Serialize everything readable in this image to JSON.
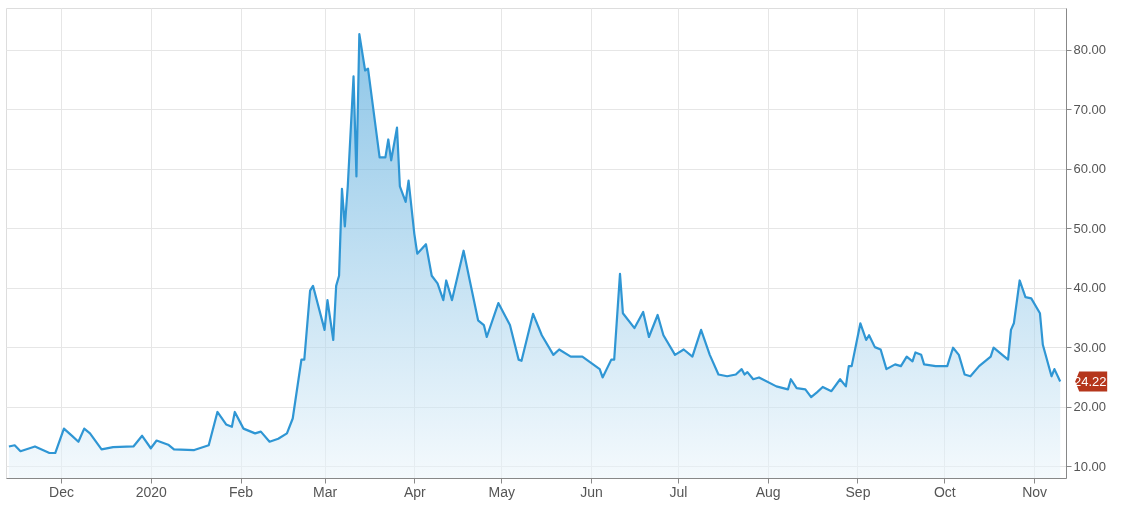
{
  "chart_data": {
    "type": "area",
    "grid": true,
    "xlim": [
      "2019-11-12",
      "2020-11-12"
    ],
    "ylim": [
      8,
      87
    ],
    "xticks": [
      {
        "value": "2019-12-01",
        "label": "Dec"
      },
      {
        "value": "2020-01-01",
        "label": "2020"
      },
      {
        "value": "2020-02-01",
        "label": "Feb"
      },
      {
        "value": "2020-03-01",
        "label": "Mar"
      },
      {
        "value": "2020-04-01",
        "label": "Apr"
      },
      {
        "value": "2020-05-01",
        "label": "May"
      },
      {
        "value": "2020-06-01",
        "label": "Jun"
      },
      {
        "value": "2020-07-01",
        "label": "Jul"
      },
      {
        "value": "2020-08-01",
        "label": "Aug"
      },
      {
        "value": "2020-09-01",
        "label": "Sep"
      },
      {
        "value": "2020-10-01",
        "label": "Oct"
      },
      {
        "value": "2020-11-01",
        "label": "Nov"
      }
    ],
    "yticks": [
      {
        "value": 10,
        "label": "10.00"
      },
      {
        "value": 20,
        "label": "20.00"
      },
      {
        "value": 30,
        "label": "30.00"
      },
      {
        "value": 40,
        "label": "40.00"
      },
      {
        "value": 50,
        "label": "50.00"
      },
      {
        "value": 60,
        "label": "60.00"
      },
      {
        "value": 70,
        "label": "70.00"
      },
      {
        "value": 80,
        "label": "80.00"
      }
    ],
    "annotations": [
      {
        "text": "24.22",
        "x": "2020-11-10",
        "y": 24.22
      }
    ],
    "x": [
      "2019-11-13",
      "2019-11-15",
      "2019-11-17",
      "2019-11-22",
      "2019-11-27",
      "2019-11-29",
      "2019-12-02",
      "2019-12-05",
      "2019-12-07",
      "2019-12-09",
      "2019-12-11",
      "2019-12-15",
      "2019-12-19",
      "2019-12-26",
      "2019-12-29",
      "2020-01-01",
      "2020-01-03",
      "2020-01-07",
      "2020-01-09",
      "2020-01-16",
      "2020-01-21",
      "2020-01-24",
      "2020-01-27",
      "2020-01-29",
      "2020-01-30",
      "2020-02-02",
      "2020-02-06",
      "2020-02-08",
      "2020-02-11",
      "2020-02-14",
      "2020-02-17",
      "2020-02-19",
      "2020-02-21",
      "2020-02-22",
      "2020-02-23",
      "2020-02-25",
      "2020-02-26",
      "2020-03-01",
      "2020-03-02",
      "2020-03-04",
      "2020-03-05",
      "2020-03-06",
      "2020-03-07",
      "2020-03-08",
      "2020-03-09",
      "2020-03-11",
      "2020-03-12",
      "2020-03-13",
      "2020-03-15",
      "2020-03-16",
      "2020-03-20",
      "2020-03-22",
      "2020-03-23",
      "2020-03-24",
      "2020-03-26",
      "2020-03-27",
      "2020-03-29",
      "2020-03-30",
      "2020-04-01",
      "2020-04-02",
      "2020-04-05",
      "2020-04-07",
      "2020-04-09",
      "2020-04-11",
      "2020-04-12",
      "2020-04-14",
      "2020-04-18",
      "2020-04-20",
      "2020-04-23",
      "2020-04-25",
      "2020-04-26",
      "2020-04-30",
      "2020-05-04",
      "2020-05-07",
      "2020-05-08",
      "2020-05-12",
      "2020-05-15",
      "2020-05-19",
      "2020-05-21",
      "2020-05-25",
      "2020-05-29",
      "2020-06-04",
      "2020-06-05",
      "2020-06-08",
      "2020-06-09",
      "2020-06-11",
      "2020-06-12",
      "2020-06-16",
      "2020-06-19",
      "2020-06-21",
      "2020-06-24",
      "2020-06-26",
      "2020-06-30",
      "2020-07-03",
      "2020-07-06",
      "2020-07-09",
      "2020-07-12",
      "2020-07-15",
      "2020-07-18",
      "2020-07-21",
      "2020-07-23",
      "2020-07-24",
      "2020-07-25",
      "2020-07-27",
      "2020-07-29",
      "2020-08-04",
      "2020-08-08",
      "2020-08-09",
      "2020-08-11",
      "2020-08-14",
      "2020-08-16",
      "2020-08-18",
      "2020-08-20",
      "2020-08-23",
      "2020-08-26",
      "2020-08-28",
      "2020-08-29",
      "2020-08-30",
      "2020-09-02",
      "2020-09-04",
      "2020-09-05",
      "2020-09-07",
      "2020-09-09",
      "2020-09-11",
      "2020-09-14",
      "2020-09-16",
      "2020-09-18",
      "2020-09-20",
      "2020-09-21",
      "2020-09-23",
      "2020-09-24",
      "2020-09-28",
      "2020-10-02",
      "2020-10-04",
      "2020-10-06",
      "2020-10-08",
      "2020-10-10",
      "2020-10-13",
      "2020-10-17",
      "2020-10-18",
      "2020-10-21",
      "2020-10-23",
      "2020-10-24",
      "2020-10-25",
      "2020-10-27",
      "2020-10-29",
      "2020-10-31",
      "2020-11-03",
      "2020-11-04",
      "2020-11-07",
      "2020-11-08",
      "2020-11-10"
    ],
    "series": [
      {
        "color": "#2f96d4",
        "values": [
          13.3,
          13.5,
          12.5,
          13.3,
          12.2,
          12.2,
          16.3,
          15.0,
          14.1,
          16.3,
          15.5,
          12.8,
          13.2,
          13.3,
          15.1,
          13.0,
          14.3,
          13.6,
          12.8,
          12.7,
          13.5,
          19.1,
          17.0,
          16.6,
          19.1,
          16.3,
          15.5,
          15.8,
          14.1,
          14.6,
          15.5,
          18.0,
          24.6,
          27.9,
          27.9,
          39.5,
          40.3,
          32.9,
          37.9,
          31.2,
          40.3,
          42.0,
          56.6,
          50.3,
          57.0,
          75.5,
          58.7,
          82.6,
          76.5,
          76.8,
          61.9,
          61.9,
          64.9,
          61.4,
          66.9,
          57.0,
          54.4,
          58.0,
          49.0,
          45.7,
          47.3,
          42.0,
          40.7,
          37.9,
          41.2,
          37.9,
          46.2,
          41.5,
          34.5,
          33.7,
          31.7,
          37.4,
          33.7,
          27.9,
          27.7,
          35.6,
          32.0,
          28.7,
          29.6,
          28.4,
          28.4,
          26.3,
          24.9,
          27.9,
          27.9,
          42.3,
          35.7,
          33.2,
          35.9,
          31.7,
          35.4,
          32.0,
          28.7,
          29.6,
          28.4,
          32.9,
          28.7,
          25.4,
          25.1,
          25.4,
          26.3,
          25.4,
          25.8,
          24.6,
          24.9,
          23.4,
          22.9,
          24.6,
          23.1,
          22.9,
          21.6,
          22.4,
          23.3,
          22.6,
          24.6,
          23.4,
          26.8,
          26.8,
          34.0,
          31.2,
          32.0,
          30.0,
          29.6,
          26.3,
          27.1,
          26.8,
          28.4,
          27.6,
          29.1,
          28.7,
          27.1,
          26.8,
          26.8,
          29.9,
          28.7,
          25.4,
          25.1,
          26.8,
          28.4,
          29.9,
          28.7,
          27.9,
          32.9,
          34.0,
          41.2,
          38.4,
          38.2,
          35.7,
          30.4,
          25.1,
          26.3,
          24.22
        ]
      }
    ]
  }
}
